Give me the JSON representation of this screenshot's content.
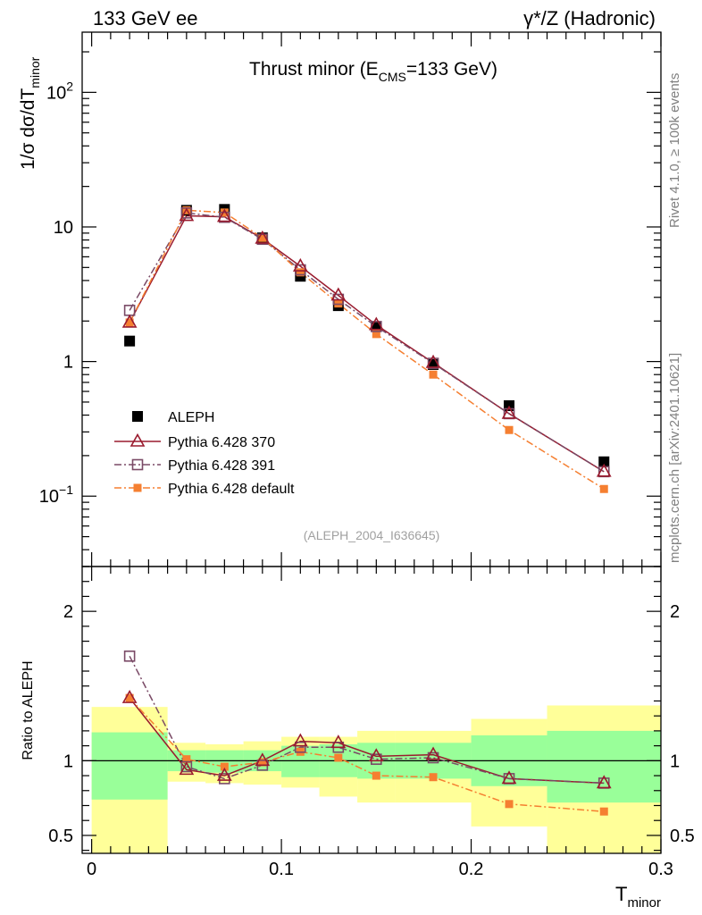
{
  "header": {
    "left": "133 GeV ee",
    "right": "γ*/Z (Hadronic)"
  },
  "side_labels": {
    "rivet": "Rivet 4.1.0, ≥ 100k events",
    "mcplots": "mcplots.cern.ch [arXiv:2401.10621]"
  },
  "colors": {
    "aleph": "#000000",
    "p370": "#9a1b2e",
    "p391": "#7a4a66",
    "default": "#f57f31",
    "band_inner": "#99ff99",
    "band_outer": "#ffff99"
  },
  "chart_data": [
    {
      "type": "line",
      "title": "Thrust minor (E_CMS=133 GeV)",
      "title_parts": {
        "pre": "Thrust minor (E",
        "sub": "CMS",
        "post": "=133 GeV)"
      },
      "ylabel_parts": {
        "pre": "1/σ  dσ/dT",
        "sub": "minor"
      },
      "yscale": "log",
      "ylim": [
        0.03,
        280
      ],
      "xlim": [
        -0.005,
        0.3
      ],
      "y_major_ticks": [
        {
          "value": 0.1,
          "base": "10",
          "exp": "−1"
        },
        {
          "value": 1,
          "base": "1",
          "exp": ""
        },
        {
          "value": 10,
          "base": "10",
          "exp": ""
        },
        {
          "value": 100,
          "base": "10",
          "exp": "2"
        }
      ],
      "watermark": "(ALEPH_2004_I636645)",
      "x": [
        0.02,
        0.05,
        0.07,
        0.09,
        0.11,
        0.13,
        0.15,
        0.18,
        0.22,
        0.27
      ],
      "bin_edges": [
        0.0,
        0.04,
        0.06,
        0.08,
        0.1,
        0.12,
        0.14,
        0.16,
        0.2,
        0.24,
        0.3
      ],
      "series": [
        {
          "name": "ALEPH",
          "key": "aleph",
          "marker": "filled-square",
          "line": "none",
          "values": [
            1.42,
            13.3,
            13.5,
            8.3,
            4.3,
            2.6,
            1.82,
            0.95,
            0.47,
            0.18
          ]
        },
        {
          "name": "Pythia 6.428 370",
          "key": "p370",
          "marker": "open-triangle",
          "line": "solid",
          "values": [
            1.95,
            12.1,
            11.9,
            8.2,
            5.1,
            3.1,
            1.87,
            0.98,
            0.41,
            0.152
          ]
        },
        {
          "name": "Pythia 6.428 391",
          "key": "p391",
          "marker": "open-square",
          "line": "dashdot",
          "values": [
            2.4,
            12.7,
            11.8,
            8.1,
            4.8,
            2.9,
            1.82,
            0.97,
            0.41,
            0.152
          ]
        },
        {
          "name": "Pythia 6.428 default",
          "key": "default",
          "marker": "small-filled-square",
          "line": "dashdot",
          "values": [
            1.95,
            13.3,
            12.8,
            8.3,
            4.6,
            2.7,
            1.6,
            0.8,
            0.31,
            0.113
          ]
        }
      ]
    },
    {
      "type": "line",
      "ylabel": "Ratio to ALEPH",
      "ylim": [
        0.38,
        2.3
      ],
      "xlim": [
        -0.005,
        0.3
      ],
      "xlabel_parts": {
        "pre": "T",
        "sub": "minor"
      },
      "y_ticks": [
        0.5,
        1,
        2
      ],
      "y_tick_labels": [
        "0.5",
        "1",
        "2"
      ],
      "x_ticks": [
        0,
        0.1,
        0.2,
        0.3
      ],
      "x_tick_labels": [
        "0",
        "0.1",
        "0.2",
        "0.3"
      ],
      "reference_line": 1,
      "x": [
        0.02,
        0.05,
        0.07,
        0.09,
        0.11,
        0.13,
        0.15,
        0.18,
        0.22,
        0.27
      ],
      "band_inner": [
        [
          0.74,
          1.19
        ],
        [
          0.93,
          1.07
        ],
        [
          0.92,
          1.07
        ],
        [
          0.93,
          1.07
        ],
        [
          0.89,
          1.1
        ],
        [
          0.89,
          1.11
        ],
        [
          0.88,
          1.12
        ],
        [
          0.88,
          1.12
        ],
        [
          0.83,
          1.17
        ],
        [
          0.72,
          1.2
        ]
      ],
      "band_outer": [
        [
          0.38,
          1.36
        ],
        [
          0.86,
          1.12
        ],
        [
          0.85,
          1.11
        ],
        [
          0.84,
          1.13
        ],
        [
          0.82,
          1.16
        ],
        [
          0.76,
          1.16
        ],
        [
          0.72,
          1.2
        ],
        [
          0.72,
          1.2
        ],
        [
          0.56,
          1.28
        ],
        [
          0.38,
          1.37
        ]
      ],
      "series": [
        {
          "name": "Pythia 6.428 370",
          "key": "p370",
          "marker": "open-triangle",
          "line": "solid",
          "values": [
            1.42,
            0.94,
            0.9,
            1.0,
            1.13,
            1.12,
            1.03,
            1.04,
            0.88,
            0.85
          ]
        },
        {
          "name": "Pythia 6.428 391",
          "key": "p391",
          "marker": "open-square",
          "line": "dashdot",
          "values": [
            1.7,
            0.96,
            0.88,
            0.97,
            1.09,
            1.09,
            1.01,
            1.02,
            0.88,
            0.85
          ]
        },
        {
          "name": "Pythia 6.428 default",
          "key": "default",
          "marker": "small-filled-square",
          "line": "dashdot",
          "values": [
            1.42,
            1.01,
            0.96,
            0.99,
            1.06,
            1.02,
            0.9,
            0.89,
            0.71,
            0.66
          ],
          "errors": [
            0,
            0,
            0,
            0,
            0,
            0,
            0,
            0,
            0.012,
            0.02
          ]
        }
      ]
    }
  ]
}
